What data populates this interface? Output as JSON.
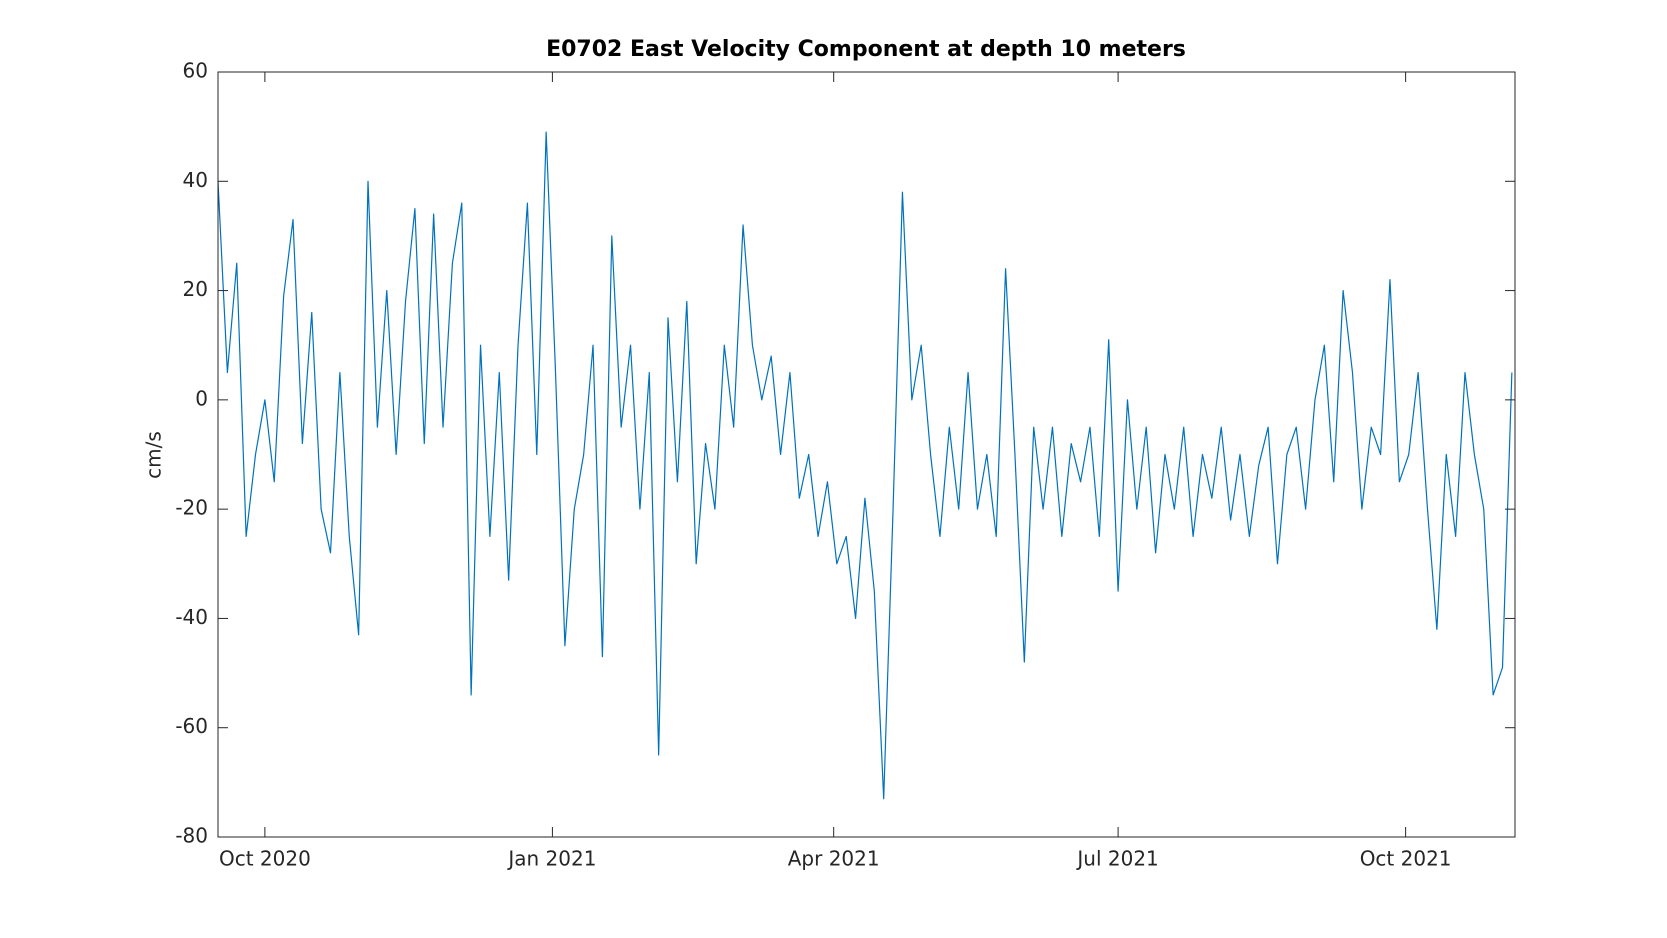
{
  "chart_data": {
    "type": "line",
    "title": "E0702 East Velocity Component at depth 10 meters",
    "y_label": "cm/s",
    "xlim": [
      "2020-09-16",
      "2021-11-05"
    ],
    "xticks": [
      {
        "value": "2020-10-01",
        "label": "Oct 2020"
      },
      {
        "value": "2021-01-01",
        "label": "Jan 2021"
      },
      {
        "value": "2021-04-01",
        "label": "Apr 2021"
      },
      {
        "value": "2021-07-01",
        "label": "Jul 2021"
      },
      {
        "value": "2021-10-01",
        "label": "Oct 2021"
      }
    ],
    "ylim": [
      -80,
      60
    ],
    "yticks": [
      -80,
      -60,
      -40,
      -20,
      0,
      20,
      40,
      60
    ],
    "grid": false,
    "x": [
      "2020-09-16",
      "2020-09-19",
      "2020-09-22",
      "2020-09-25",
      "2020-09-28",
      "2020-10-01",
      "2020-10-04",
      "2020-10-07",
      "2020-10-10",
      "2020-10-13",
      "2020-10-16",
      "2020-10-19",
      "2020-10-22",
      "2020-10-25",
      "2020-10-28",
      "2020-10-31",
      "2020-11-03",
      "2020-11-06",
      "2020-11-09",
      "2020-11-12",
      "2020-11-15",
      "2020-11-18",
      "2020-11-21",
      "2020-11-24",
      "2020-11-27",
      "2020-11-30",
      "2020-12-03",
      "2020-12-06",
      "2020-12-09",
      "2020-12-12",
      "2020-12-15",
      "2020-12-18",
      "2020-12-21",
      "2020-12-24",
      "2020-12-27",
      "2020-12-30",
      "2021-01-02",
      "2021-01-05",
      "2021-01-08",
      "2021-01-11",
      "2021-01-14",
      "2021-01-17",
      "2021-01-20",
      "2021-01-23",
      "2021-01-26",
      "2021-01-29",
      "2021-02-01",
      "2021-02-04",
      "2021-02-07",
      "2021-02-10",
      "2021-02-13",
      "2021-02-16",
      "2021-02-19",
      "2021-02-22",
      "2021-02-25",
      "2021-02-28",
      "2021-03-03",
      "2021-03-06",
      "2021-03-09",
      "2021-03-12",
      "2021-03-15",
      "2021-03-18",
      "2021-03-21",
      "2021-03-24",
      "2021-03-27",
      "2021-03-30",
      "2021-04-02",
      "2021-04-05",
      "2021-04-08",
      "2021-04-11",
      "2021-04-14",
      "2021-04-17",
      "2021-04-20",
      "2021-04-23",
      "2021-04-26",
      "2021-04-29",
      "2021-05-02",
      "2021-05-05",
      "2021-05-08",
      "2021-05-11",
      "2021-05-14",
      "2021-05-17",
      "2021-05-20",
      "2021-05-23",
      "2021-05-26",
      "2021-05-29",
      "2021-06-01",
      "2021-06-04",
      "2021-06-07",
      "2021-06-10",
      "2021-06-13",
      "2021-06-16",
      "2021-06-19",
      "2021-06-22",
      "2021-06-25",
      "2021-06-28",
      "2021-07-01",
      "2021-07-04",
      "2021-07-07",
      "2021-07-10",
      "2021-07-13",
      "2021-07-16",
      "2021-07-19",
      "2021-07-22",
      "2021-07-25",
      "2021-07-28",
      "2021-07-31",
      "2021-08-03",
      "2021-08-06",
      "2021-08-09",
      "2021-08-12",
      "2021-08-15",
      "2021-08-18",
      "2021-08-21",
      "2021-08-24",
      "2021-08-27",
      "2021-08-30",
      "2021-09-02",
      "2021-09-05",
      "2021-09-08",
      "2021-09-11",
      "2021-09-14",
      "2021-09-17",
      "2021-09-20",
      "2021-09-23",
      "2021-09-26",
      "2021-09-29",
      "2021-10-02",
      "2021-10-05",
      "2021-10-08",
      "2021-10-11",
      "2021-10-14",
      "2021-10-17",
      "2021-10-20",
      "2021-10-23",
      "2021-10-26",
      "2021-10-29",
      "2021-11-01",
      "2021-11-04"
    ],
    "series": [
      {
        "name": "East Velocity",
        "color": "#0072bd",
        "values": [
          40,
          5,
          25,
          -25,
          -10,
          0,
          -15,
          19,
          33,
          -8,
          16,
          -20,
          -28,
          5,
          -25,
          -43,
          40,
          -5,
          20,
          -10,
          18,
          35,
          -8,
          34,
          -5,
          25,
          36,
          -54,
          10,
          -25,
          5,
          -33,
          10,
          36,
          -10,
          49,
          5,
          -45,
          -20,
          -10,
          10,
          -47,
          30,
          -5,
          10,
          -20,
          5,
          -65,
          15,
          -15,
          18,
          -30,
          -8,
          -20,
          10,
          -5,
          32,
          10,
          0,
          8,
          -10,
          5,
          -18,
          -10,
          -25,
          -15,
          -30,
          -25,
          -40,
          -18,
          -35,
          -73,
          -20,
          38,
          0,
          10,
          -10,
          -25,
          -5,
          -20,
          5,
          -20,
          -10,
          -25,
          24,
          -10,
          -48,
          -5,
          -20,
          -5,
          -25,
          -8,
          -15,
          -5,
          -25,
          11,
          -35,
          0,
          -20,
          -5,
          -28,
          -10,
          -20,
          -5,
          -25,
          -10,
          -18,
          -5,
          -22,
          -10,
          -25,
          -12,
          -5,
          -30,
          -10,
          -5,
          -20,
          0,
          10,
          -15,
          20,
          5,
          -20,
          -5,
          -10,
          22,
          -15,
          -10,
          5,
          -20,
          -42,
          -10,
          -25,
          5,
          -10,
          -20,
          -54,
          -49,
          5
        ]
      }
    ]
  }
}
